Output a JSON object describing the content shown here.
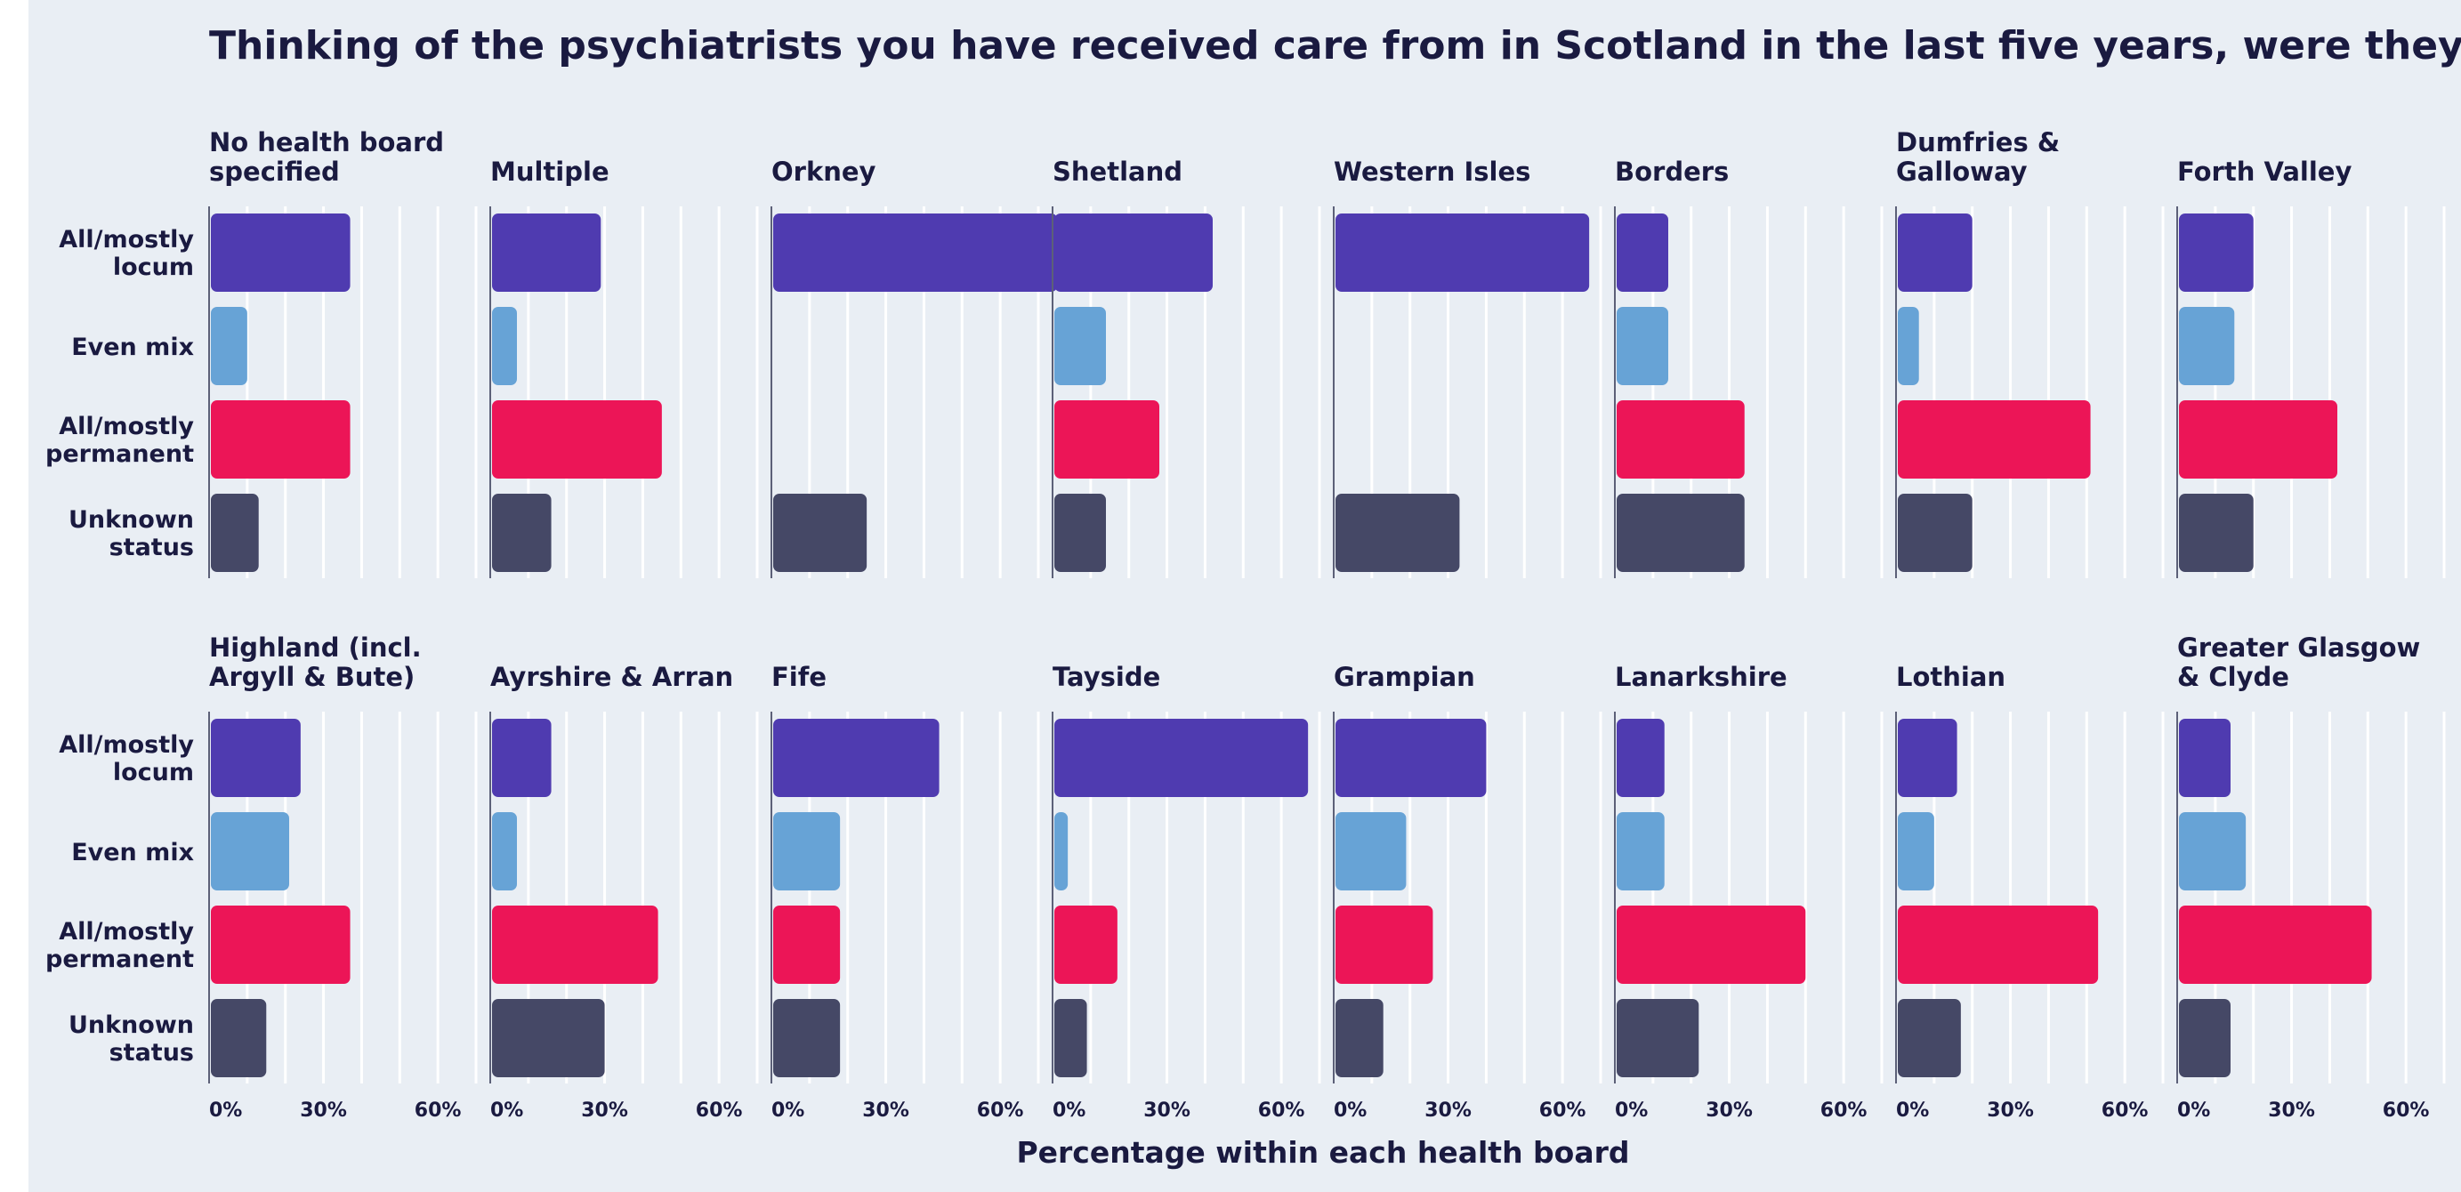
{
  "chart_data": {
    "type": "bar",
    "orientation": "horizontal",
    "title": "Thinking of the psychiatrists you have received care from in Scotland in the last five years, were they...",
    "xlabel": "Percentage within each health board",
    "ylabel": "",
    "xlim": [
      0,
      0.7
    ],
    "x_ticks": [
      "0%",
      "30%",
      "60%"
    ],
    "x_tick_values": [
      0,
      0.3,
      0.6
    ],
    "grid": true,
    "legend": "none",
    "categories": [
      "All/mostly locum",
      "Even mix",
      "All/mostly permanent",
      "Unknown status"
    ],
    "category_label_lines": [
      [
        "All/mostly",
        "locum"
      ],
      [
        "Even mix"
      ],
      [
        "All/mostly",
        "permanent"
      ],
      [
        "Unknown",
        "status"
      ]
    ],
    "colors": {
      "All/mostly locum": "#4f3bb0",
      "Even mix": "#67a3d6",
      "All/mostly permanent": "#ec1557",
      "Unknown status": "#454866"
    },
    "facets": [
      {
        "name": "No health board specified",
        "title_lines": [
          "No health board",
          "specified"
        ],
        "values": [
          0.37,
          0.1,
          0.37,
          0.13
        ]
      },
      {
        "name": "Multiple",
        "title_lines": [
          "Multiple"
        ],
        "values": [
          0.29,
          0.07,
          0.45,
          0.16
        ]
      },
      {
        "name": "Orkney",
        "title_lines": [
          "Orkney"
        ],
        "values": [
          0.75,
          0,
          0,
          0.25
        ]
      },
      {
        "name": "Shetland",
        "title_lines": [
          "Shetland"
        ],
        "values": [
          0.42,
          0.14,
          0.28,
          0.14
        ]
      },
      {
        "name": "Western Isles",
        "title_lines": [
          "Western Isles"
        ],
        "values": [
          0.67,
          0,
          0,
          0.33
        ]
      },
      {
        "name": "Borders",
        "title_lines": [
          "Borders"
        ],
        "values": [
          0.14,
          0.14,
          0.34,
          0.34
        ]
      },
      {
        "name": "Dumfries & Galloway",
        "title_lines": [
          "Dumfries &",
          "Galloway"
        ],
        "values": [
          0.2,
          0.06,
          0.51,
          0.2
        ]
      },
      {
        "name": "Forth Valley",
        "title_lines": [
          "Forth Valley"
        ],
        "values": [
          0.2,
          0.15,
          0.42,
          0.2
        ]
      },
      {
        "name": "Highland (incl. Argyll & Bute)",
        "title_lines": [
          "Highland (incl.",
          "Argyll & Bute)"
        ],
        "values": [
          0.24,
          0.21,
          0.37,
          0.15
        ]
      },
      {
        "name": "Ayrshire & Arran",
        "title_lines": [
          "Ayrshire & Arran"
        ],
        "values": [
          0.16,
          0.07,
          0.44,
          0.3
        ]
      },
      {
        "name": "Fife",
        "title_lines": [
          "Fife"
        ],
        "values": [
          0.44,
          0.18,
          0.18,
          0.18
        ]
      },
      {
        "name": "Tayside",
        "title_lines": [
          "Tayside"
        ],
        "values": [
          0.67,
          0.04,
          0.17,
          0.09
        ]
      },
      {
        "name": "Grampian",
        "title_lines": [
          "Grampian"
        ],
        "values": [
          0.4,
          0.19,
          0.26,
          0.13
        ]
      },
      {
        "name": "Lanarkshire",
        "title_lines": [
          "Lanarkshire"
        ],
        "values": [
          0.13,
          0.13,
          0.5,
          0.22
        ]
      },
      {
        "name": "Lothian",
        "title_lines": [
          "Lothian"
        ],
        "values": [
          0.16,
          0.1,
          0.53,
          0.17
        ]
      },
      {
        "name": "Greater Glasgow & Clyde",
        "title_lines": [
          "Greater Glasgow",
          "& Clyde"
        ],
        "values": [
          0.14,
          0.18,
          0.51,
          0.14
        ]
      }
    ]
  }
}
